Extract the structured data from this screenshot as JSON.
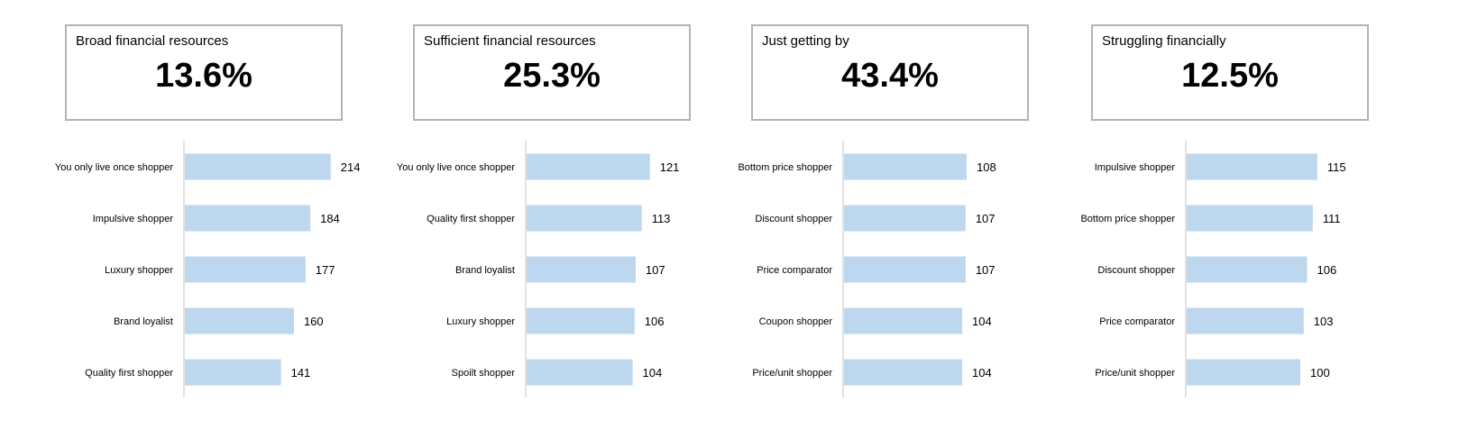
{
  "colors": {
    "bar": "#bdd7ee",
    "axis": "#d9d9d9",
    "box_border": "#b3b3b3"
  },
  "chart_data": [
    {
      "type": "bar",
      "orientation": "horizontal",
      "kpi_label": "Broad financial resources",
      "kpi_value": "13.6%",
      "categories": [
        "You only live once shopper",
        "Impulsive shopper",
        "Luxury shopper",
        "Brand loyalist",
        "Quality first shopper"
      ],
      "values": [
        214,
        184,
        177,
        160,
        141
      ]
    },
    {
      "type": "bar",
      "orientation": "horizontal",
      "kpi_label": "Sufficient financial resources",
      "kpi_value": "25.3%",
      "categories": [
        "You only live once shopper",
        "Quality first shopper",
        "Brand loyalist",
        "Luxury shopper",
        "Spoilt shopper"
      ],
      "values": [
        121,
        113,
        107,
        106,
        104
      ]
    },
    {
      "type": "bar",
      "orientation": "horizontal",
      "kpi_label": "Just getting by",
      "kpi_value": "43.4%",
      "categories": [
        "Bottom price shopper",
        "Discount shopper",
        "Price comparator",
        "Coupon shopper",
        "Price/unit shopper"
      ],
      "values": [
        108,
        107,
        107,
        104,
        104
      ]
    },
    {
      "type": "bar",
      "orientation": "horizontal",
      "kpi_label": "Struggling financially",
      "kpi_value": "12.5%",
      "categories": [
        "Impulsive shopper",
        "Bottom price shopper",
        "Discount shopper",
        "Price comparator",
        "Price/unit shopper"
      ],
      "values": [
        115,
        111,
        106,
        103,
        100
      ]
    }
  ]
}
